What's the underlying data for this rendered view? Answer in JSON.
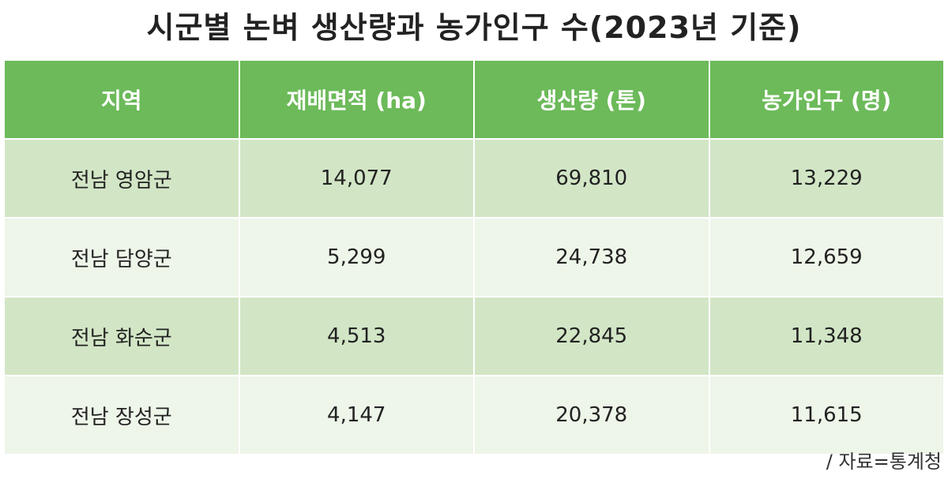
{
  "title": "시군별 논벼 생산량과 농가인구 수(2023년 기준)",
  "source": "/ 자료=통계청",
  "colors": {
    "header_bg": "#6cba5a",
    "row_dark": "#d2e6c6",
    "row_light": "#eef5e9"
  },
  "chart_data": {
    "type": "table",
    "title": "시군별 논벼 생산량과 농가인구 수(2023년 기준)",
    "columns": [
      "지역",
      "재배면적 (ha)",
      "생산량 (톤)",
      "농가인구 (명)"
    ],
    "rows": [
      [
        "전남 영암군",
        "14,077",
        "69,810",
        "13,229"
      ],
      [
        "전남 담양군",
        "5,299",
        "24,738",
        "12,659"
      ],
      [
        "전남 화순군",
        "4,513",
        "22,845",
        "11,348"
      ],
      [
        "전남 장성군",
        "4,147",
        "20,378",
        "11,615"
      ]
    ]
  }
}
